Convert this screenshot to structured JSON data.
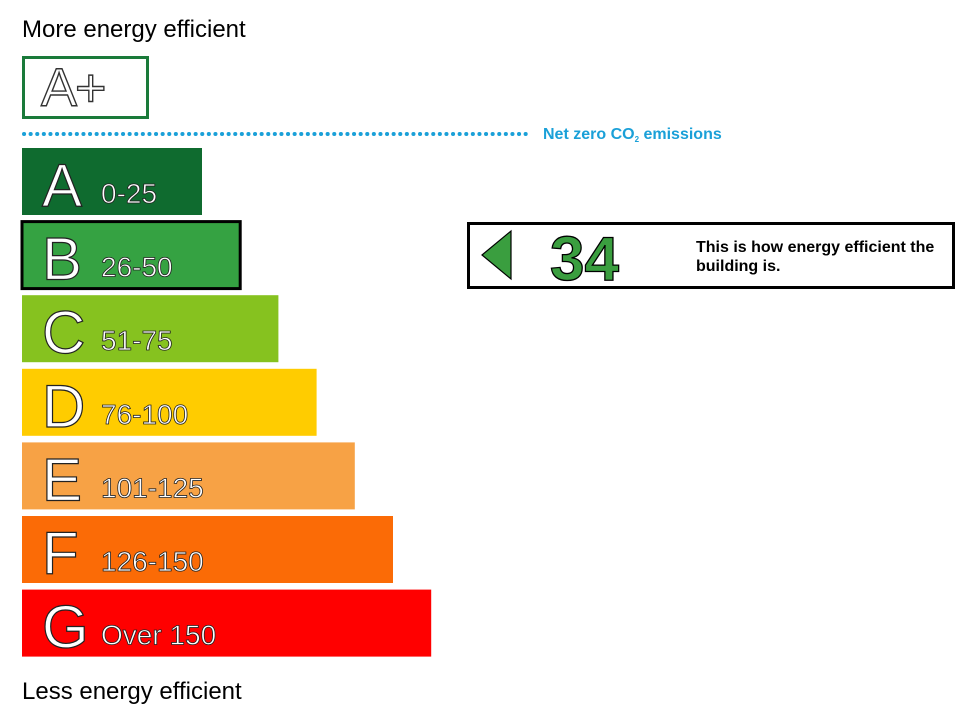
{
  "header": {
    "more_label": "More energy efficient"
  },
  "footer": {
    "less_label": "Less energy efficient"
  },
  "aplus": {
    "letter": "A+",
    "border_color": "#1a7a3a"
  },
  "net_zero": {
    "label_prefix": "Net zero CO",
    "label_sub": "2",
    "label_suffix": " emissions",
    "color": "#1aa0d8"
  },
  "pointer": {
    "value": "34",
    "text": "This is how energy efficient the building is.",
    "color": "#3a9e3f"
  },
  "chart_data": {
    "type": "bar",
    "title": "",
    "current_rating": 34,
    "current_band": "B",
    "categories": [
      "A",
      "B",
      "C",
      "D",
      "E",
      "F",
      "G"
    ],
    "bands": [
      {
        "letter": "A",
        "range": "0-25",
        "upper": 25,
        "color": "#0f6b2f"
      },
      {
        "letter": "B",
        "range": "26-50",
        "upper": 50,
        "color": "#35a242"
      },
      {
        "letter": "C",
        "range": "51-75",
        "upper": 75,
        "color": "#86c21f"
      },
      {
        "letter": "D",
        "range": "76-100",
        "upper": 100,
        "color": "#ffcc00"
      },
      {
        "letter": "E",
        "range": "101-125",
        "upper": 125,
        "color": "#f7a245"
      },
      {
        "letter": "F",
        "range": "126-150",
        "upper": 150,
        "color": "#fb6b06"
      },
      {
        "letter": "G",
        "range": "Over 150",
        "upper": 175,
        "color": "#ff0000"
      }
    ]
  }
}
